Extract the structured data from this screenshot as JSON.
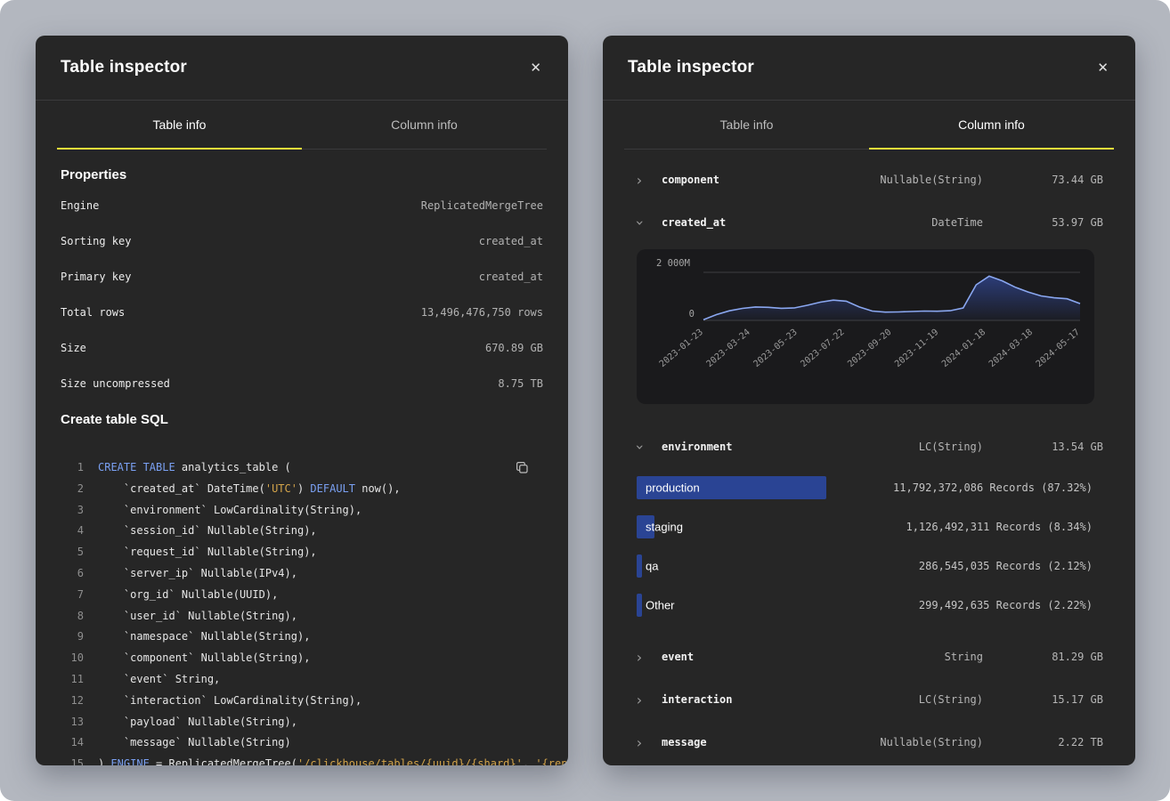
{
  "colors": {
    "accent_yellow": "#f3e13a",
    "bar_blue": "#2a4494",
    "chart_line_blue": "#8aa7f0",
    "sql_keyword_blue": "#7aa0f2",
    "sql_string_yellow": "#d4a44a",
    "panel_bg": "#262626",
    "page_bg": "#b3b7bf"
  },
  "left_panel": {
    "title": "Table inspector",
    "close_glyph": "✕",
    "tabs": [
      {
        "label": "Table info",
        "active": true
      },
      {
        "label": "Column info",
        "active": false
      }
    ],
    "properties": {
      "heading": "Properties",
      "rows": [
        {
          "label": "Engine",
          "value": "ReplicatedMergeTree"
        },
        {
          "label": "Sorting key",
          "value": "created_at"
        },
        {
          "label": "Primary key",
          "value": "created_at"
        },
        {
          "label": "Total rows",
          "value": "13,496,476,750 rows"
        },
        {
          "label": "Size",
          "value": "670.89 GB"
        },
        {
          "label": "Size uncompressed",
          "value": "8.75 TB"
        }
      ]
    },
    "sql": {
      "heading": "Create table SQL",
      "lines": [
        [
          [
            "k",
            "CREATE TABLE"
          ],
          [
            "p",
            " analytics_table ("
          ]
        ],
        [
          [
            "p",
            "    `created_at` DateTime("
          ],
          [
            "s",
            "'UTC'"
          ],
          [
            "p",
            ") "
          ],
          [
            "k",
            "DEFAULT"
          ],
          [
            "p",
            " now(),"
          ]
        ],
        [
          [
            "p",
            "    `environment` LowCardinality(String),"
          ]
        ],
        [
          [
            "p",
            "    `session_id` Nullable(String),"
          ]
        ],
        [
          [
            "p",
            "    `request_id` Nullable(String),"
          ]
        ],
        [
          [
            "p",
            "    `server_ip` Nullable(IPv4),"
          ]
        ],
        [
          [
            "p",
            "    `org_id` Nullable(UUID),"
          ]
        ],
        [
          [
            "p",
            "    `user_id` Nullable(String),"
          ]
        ],
        [
          [
            "p",
            "    `namespace` Nullable(String),"
          ]
        ],
        [
          [
            "p",
            "    `component` Nullable(String),"
          ]
        ],
        [
          [
            "p",
            "    `event` String,"
          ]
        ],
        [
          [
            "p",
            "    `interaction` LowCardinality(String),"
          ]
        ],
        [
          [
            "p",
            "    `payload` Nullable(String),"
          ]
        ],
        [
          [
            "p",
            "    `message` Nullable(String)"
          ]
        ],
        [
          [
            "p",
            ") "
          ],
          [
            "k",
            "ENGINE"
          ],
          [
            "p",
            " = ReplicatedMergeTree("
          ],
          [
            "s",
            "'/clickhouse/tables/{uuid}/{shard}'"
          ],
          [
            "p",
            ", "
          ],
          [
            "s",
            "'{replica}'"
          ],
          [
            "p",
            ")"
          ]
        ]
      ]
    }
  },
  "right_panel": {
    "title": "Table inspector",
    "close_glyph": "✕",
    "tabs": [
      {
        "label": "Table info",
        "active": false
      },
      {
        "label": "Column info",
        "active": true
      }
    ],
    "columns": [
      {
        "name": "component",
        "type": "Nullable(String)",
        "size": "73.44 GB",
        "expanded": false,
        "detail": null
      },
      {
        "name": "created_at",
        "type": "DateTime",
        "size": "53.97 GB",
        "expanded": true,
        "detail": "chart"
      },
      {
        "name": "environment",
        "type": "LC(String)",
        "size": "13.54 GB",
        "expanded": true,
        "detail": "bars"
      },
      {
        "name": "event",
        "type": "String",
        "size": "81.29 GB",
        "expanded": false,
        "detail": null
      },
      {
        "name": "interaction",
        "type": "LC(String)",
        "size": "15.17 GB",
        "expanded": false,
        "detail": null
      },
      {
        "name": "message",
        "type": "Nullable(String)",
        "size": "2.22 TB",
        "expanded": false,
        "detail": null
      }
    ],
    "environment_values": [
      {
        "label": "production",
        "value": "11,792,372,086 Records (87.32%)",
        "pct": 87.32
      },
      {
        "label": "staging",
        "value": "1,126,492,311 Records (8.34%)",
        "pct": 8.34
      },
      {
        "label": "qa",
        "value": "286,545,035 Records (2.12%)",
        "pct": 2.12
      },
      {
        "label": "Other",
        "value": "299,492,635 Records (2.22%)",
        "pct": 2.22
      }
    ]
  },
  "chart_data": {
    "type": "area",
    "title": "",
    "x_labels": [
      "2023-01-23",
      "2023-03-24",
      "2023-05-23",
      "2023-07-22",
      "2023-09-20",
      "2023-11-19",
      "2024-01-18",
      "2024-03-18",
      "2024-05-17"
    ],
    "y_ticks": [
      "2 000M",
      "0"
    ],
    "ylim": [
      0,
      2000
    ],
    "legend": false,
    "grid": true,
    "values": [
      30,
      240,
      400,
      500,
      560,
      545,
      505,
      520,
      630,
      760,
      845,
      800,
      560,
      390,
      345,
      350,
      370,
      390,
      380,
      405,
      520,
      1480,
      1840,
      1650,
      1380,
      1180,
      1020,
      940,
      900,
      700
    ]
  }
}
